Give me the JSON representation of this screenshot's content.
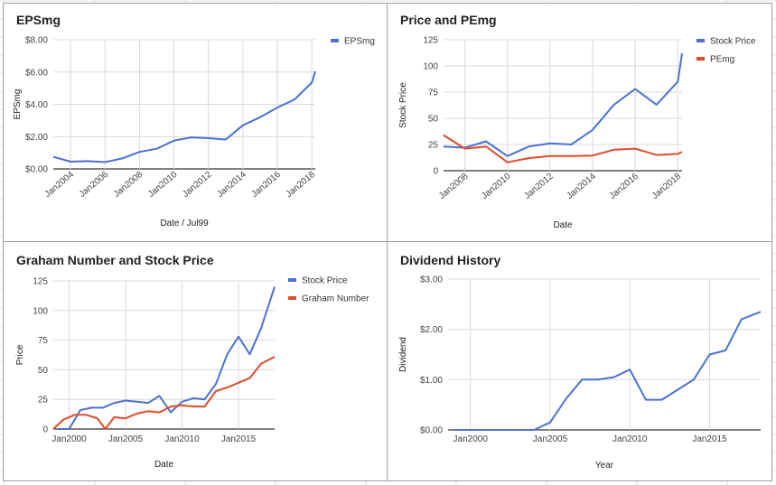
{
  "chart_data": [
    {
      "type": "line",
      "title": "EPSmg",
      "xlabel": "Date / Jul99",
      "ylabel": "EPSmg",
      "ylim": [
        0,
        8
      ],
      "yticks": [
        "$0.00",
        "$2.00",
        "$4.00",
        "$6.00",
        "$8.00"
      ],
      "xlim": [
        2003,
        2018.2
      ],
      "xticks": [
        "Jan2004",
        "Jan2006",
        "Jan2008",
        "Jan2010",
        "Jan2012",
        "Jan2014",
        "Jan2016",
        "Jan2018"
      ],
      "grid": true,
      "legend_position": "right",
      "series": [
        {
          "name": "EPSmg",
          "color": "#4a72d0",
          "x": [
            2003,
            2004,
            2005,
            2006,
            2007,
            2008,
            2009,
            2010,
            2011,
            2012,
            2013,
            2014,
            2015,
            2016,
            2017,
            2018,
            2018.2
          ],
          "y": [
            0.75,
            0.45,
            0.48,
            0.42,
            0.65,
            1.05,
            1.25,
            1.75,
            1.95,
            1.9,
            1.82,
            2.7,
            3.2,
            3.8,
            4.3,
            5.35,
            6.05
          ]
        }
      ]
    },
    {
      "type": "line",
      "title": "Price and PEmg",
      "xlabel": "Date",
      "ylabel": "Stock Price",
      "ylim": [
        0,
        125
      ],
      "yticks": [
        "0",
        "25",
        "50",
        "75",
        "100",
        "125"
      ],
      "xlim": [
        2007,
        2018.2
      ],
      "xticks": [
        "Jan2008",
        "Jan2010",
        "Jan2012",
        "Jan2014",
        "Jan2016",
        "Jan2018"
      ],
      "grid": true,
      "legend_position": "right",
      "series": [
        {
          "name": "Stock Price",
          "color": "#4a72d0",
          "x": [
            2007,
            2008,
            2009,
            2010,
            2011,
            2012,
            2013,
            2014,
            2015,
            2016,
            2017,
            2018,
            2018.2
          ],
          "y": [
            23,
            22,
            28,
            14,
            23,
            26,
            25,
            39,
            63,
            78,
            63,
            85,
            112
          ]
        },
        {
          "name": "PEmg",
          "color": "#de4b2b",
          "x": [
            2007,
            2008,
            2009,
            2010,
            2011,
            2012,
            2013,
            2014,
            2015,
            2016,
            2017,
            2018,
            2018.2
          ],
          "y": [
            34,
            21,
            23,
            8,
            12,
            14,
            14,
            14.5,
            20,
            21,
            15,
            16,
            18
          ]
        }
      ]
    },
    {
      "type": "line",
      "title": "Graham Number and Stock Price",
      "xlabel": "Date",
      "ylabel": "Price",
      "ylim": [
        0,
        125
      ],
      "yticks": [
        "0",
        "25",
        "50",
        "75",
        "100",
        "125"
      ],
      "xlim": [
        1998.6,
        2018.2
      ],
      "xticks": [
        "Jan2000",
        "Jan2005",
        "Jan2010",
        "Jan2015"
      ],
      "grid": true,
      "legend_position": "right",
      "series": [
        {
          "name": "Stock Price",
          "color": "#4a72d0",
          "x": [
            1999,
            2000,
            2001,
            2002,
            2003,
            2004,
            2005,
            2006,
            2007,
            2008,
            2009,
            2010,
            2011,
            2012,
            2013,
            2014,
            2015,
            2016,
            2017,
            2018.2
          ],
          "y": [
            0,
            0,
            16,
            18,
            18,
            22,
            24,
            23,
            22,
            28,
            14,
            23,
            26,
            25,
            38,
            63,
            78,
            63,
            85,
            120
          ]
        },
        {
          "name": "Graham Number",
          "color": "#de4b2b",
          "x": [
            1998.6,
            1999.5,
            2000.5,
            2001.5,
            2002.5,
            2003.2,
            2004,
            2005,
            2006,
            2007,
            2008,
            2009,
            2010,
            2011,
            2012,
            2013,
            2014,
            2015,
            2016,
            2017,
            2018.2
          ],
          "y": [
            0,
            8,
            12,
            12,
            9,
            0,
            10,
            9,
            13,
            15,
            14,
            19,
            20,
            19,
            19,
            32,
            35,
            39,
            43,
            55,
            61
          ]
        }
      ]
    },
    {
      "type": "line",
      "title": "Dividend History",
      "xlabel": "Year",
      "ylabel": "Dividend",
      "ylim": [
        0,
        3
      ],
      "yticks": [
        "$0.00",
        "$1.00",
        "$2.00",
        "$3.00"
      ],
      "xlim": [
        1998.6,
        2018.2
      ],
      "xticks": [
        "Jan2000",
        "Jan2005",
        "Jan2010",
        "Jan2015"
      ],
      "grid": true,
      "series": [
        {
          "name": "",
          "color": "#4a72d0",
          "x": [
            1999,
            2000,
            2001,
            2002,
            2003,
            2004,
            2005,
            2006,
            2007,
            2008,
            2009,
            2010,
            2011,
            2012,
            2013,
            2014,
            2015,
            2016,
            2017,
            2018.2
          ],
          "y": [
            0,
            0,
            0,
            0,
            0,
            0,
            0.15,
            0.62,
            1.0,
            1.0,
            1.05,
            1.2,
            0.6,
            0.6,
            0.8,
            1.0,
            1.5,
            1.58,
            2.2,
            2.35
          ]
        }
      ]
    }
  ]
}
